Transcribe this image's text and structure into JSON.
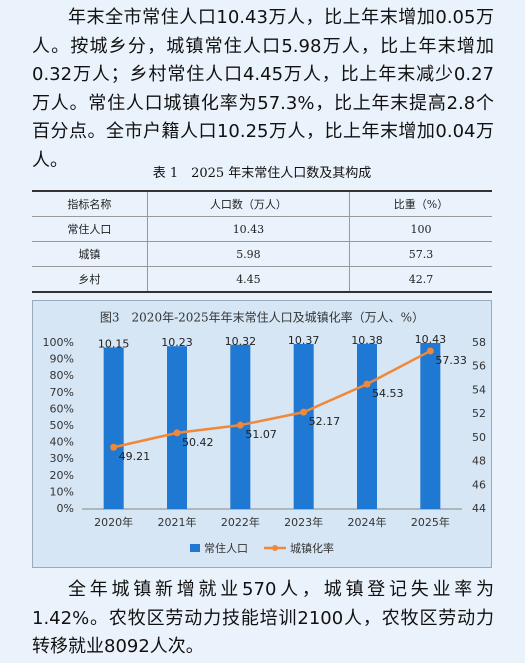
{
  "paragraphs": [
    "年末全市常住人口10.43万人，比上年末增加0.05万人。按城乡分，城镇常住人口5.98万人，比上年末增加0.32万人；乡村常住人口4.45万人，比上年末减少0.27万人。常住人口城镇化率为57.3%，比上年末提高2.8个百分点。全市户籍人口10.25万人，比上年末增加0.04万人。",
    "全年城镇新增就业570人，城镇登记失业率为1.42%。农牧区劳动力技能培训2100人，农牧区劳动力转移就业8092人次。"
  ],
  "table": {
    "title": "表 1　2025 年末常住人口数及其构成",
    "header": [
      "指标名称",
      "人口数（万人）",
      "比重（%）"
    ],
    "rows": [
      [
        "常住人口",
        "10.43",
        "100"
      ],
      [
        "城镇",
        "5.98",
        "57.3"
      ],
      [
        "乡村",
        "4.45",
        "42.7"
      ]
    ]
  },
  "chart_data": {
    "type": "bar-line",
    "title": "图3　2020年-2025年年末常住人口及城镇化率（万人、%）",
    "categories": [
      "2020年",
      "2021年",
      "2022年",
      "2023年",
      "2024年",
      "2025年"
    ],
    "series": [
      {
        "name": "常住人口",
        "type": "bar",
        "color": "#1f78d1",
        "values": [
          10.15,
          10.23,
          10.32,
          10.37,
          10.38,
          10.43
        ]
      },
      {
        "name": "城镇化率",
        "type": "line",
        "axis": "y2",
        "color": "#f0883a",
        "values": [
          49.21,
          50.42,
          51.07,
          52.17,
          54.53,
          57.33
        ]
      }
    ],
    "bar_ylim": [
      0,
      10.43
    ],
    "ylim": [
      0,
      100
    ],
    "yticks": [
      {
        "value": 0,
        "label": "0%"
      },
      {
        "value": 10,
        "label": "10%"
      },
      {
        "value": 20,
        "label": "20%"
      },
      {
        "value": 30,
        "label": "30%"
      },
      {
        "value": 40,
        "label": "40%"
      },
      {
        "value": 50,
        "label": "50%"
      },
      {
        "value": 60,
        "label": "60%"
      },
      {
        "value": 70,
        "label": "70%"
      },
      {
        "value": 80,
        "label": "80%"
      },
      {
        "value": 90,
        "label": "90%"
      },
      {
        "value": 100,
        "label": "100%"
      }
    ],
    "y2lim": [
      44,
      58
    ],
    "y2ticks": [
      44,
      46,
      48,
      50,
      52,
      54,
      56,
      58
    ],
    "legend": "bottom"
  }
}
